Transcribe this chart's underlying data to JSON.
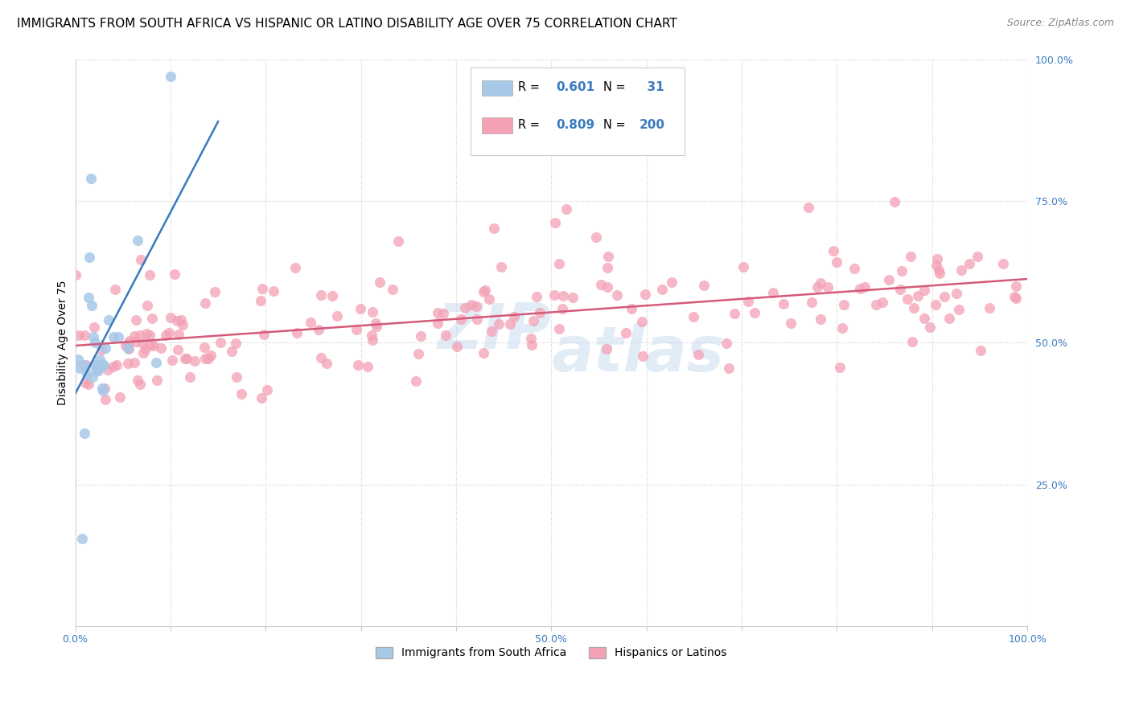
{
  "title": "IMMIGRANTS FROM SOUTH AFRICA VS HISPANIC OR LATINO DISABILITY AGE OVER 75 CORRELATION CHART",
  "source": "Source: ZipAtlas.com",
  "ylabel": "Disability Age Over 75",
  "watermark": "ZIPAtlas",
  "blue_R": 0.601,
  "blue_N": 31,
  "pink_R": 0.809,
  "pink_N": 200,
  "blue_color": "#a8c8e8",
  "pink_color": "#f4a0b5",
  "blue_line_color": "#3a7abf",
  "pink_line_color": "#d45a7a",
  "legend_blue_label": "Immigrants from South Africa",
  "legend_pink_label": "Hispanics or Latinos",
  "title_fontsize": 11,
  "source_fontsize": 9,
  "tick_fontsize": 9,
  "legend_fontsize": 10,
  "blue_scatter_x": [
    0.003,
    0.005,
    0.007,
    0.009,
    0.01,
    0.012,
    0.014,
    0.015,
    0.016,
    0.017,
    0.018,
    0.019,
    0.02,
    0.021,
    0.022,
    0.023,
    0.024,
    0.025,
    0.026,
    0.027,
    0.028,
    0.029,
    0.03,
    0.032,
    0.035,
    0.04,
    0.045,
    0.055,
    0.065,
    0.085,
    0.1
  ],
  "blue_scatter_y": [
    0.47,
    0.455,
    0.155,
    0.46,
    0.34,
    0.445,
    0.58,
    0.65,
    0.79,
    0.565,
    0.44,
    0.51,
    0.46,
    0.5,
    0.45,
    0.46,
    0.45,
    0.455,
    0.47,
    0.46,
    0.42,
    0.415,
    0.46,
    0.49,
    0.54,
    0.51,
    0.51,
    0.49,
    0.68,
    0.465,
    0.97
  ]
}
